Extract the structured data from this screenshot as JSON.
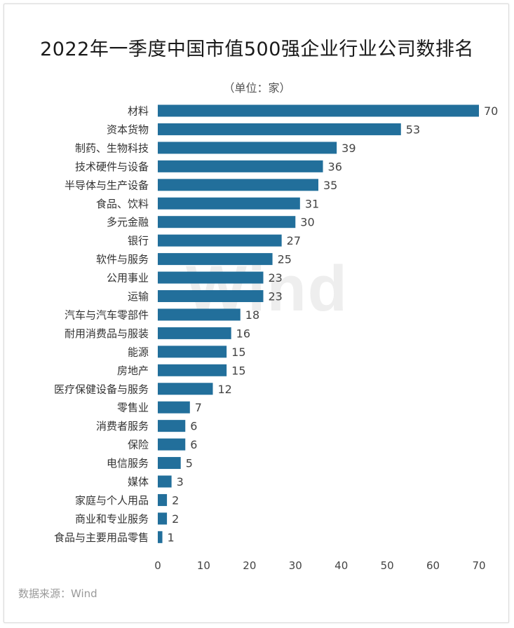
{
  "header": {
    "title": "2022年一季度中国市值500强企业行业公司数排名",
    "unit": "（单位：家）"
  },
  "footer": {
    "source": "数据来源：Wind"
  },
  "watermark": "Wind",
  "colors": {
    "bar": "#226f9b",
    "text": "#333333"
  },
  "chart_data": {
    "type": "bar",
    "orientation": "horizontal",
    "title": "2022年一季度中国市值500强企业行业公司数排名",
    "xlabel": "",
    "ylabel": "",
    "xlim": [
      0,
      70
    ],
    "xticks": [
      0,
      10,
      20,
      30,
      40,
      50,
      60,
      70
    ],
    "grid": false,
    "legend": "none",
    "categories": [
      "材料",
      "资本货物",
      "制药、生物科技",
      "技术硬件与设备",
      "半导体与生产设备",
      "食品、饮料",
      "多元金融",
      "银行",
      "软件与服务",
      "公用事业",
      "运输",
      "汽车与汽车零部件",
      "耐用消费品与服装",
      "能源",
      "房地产",
      "医疗保健设备与服务",
      "零售业",
      "消费者服务",
      "保险",
      "电信服务",
      "媒体",
      "家庭与个人用品",
      "商业和专业服务",
      "食品与主要用品零售"
    ],
    "values": [
      70,
      53,
      39,
      36,
      35,
      31,
      30,
      27,
      25,
      23,
      23,
      18,
      16,
      15,
      15,
      12,
      7,
      6,
      6,
      5,
      3,
      2,
      2,
      1
    ]
  }
}
